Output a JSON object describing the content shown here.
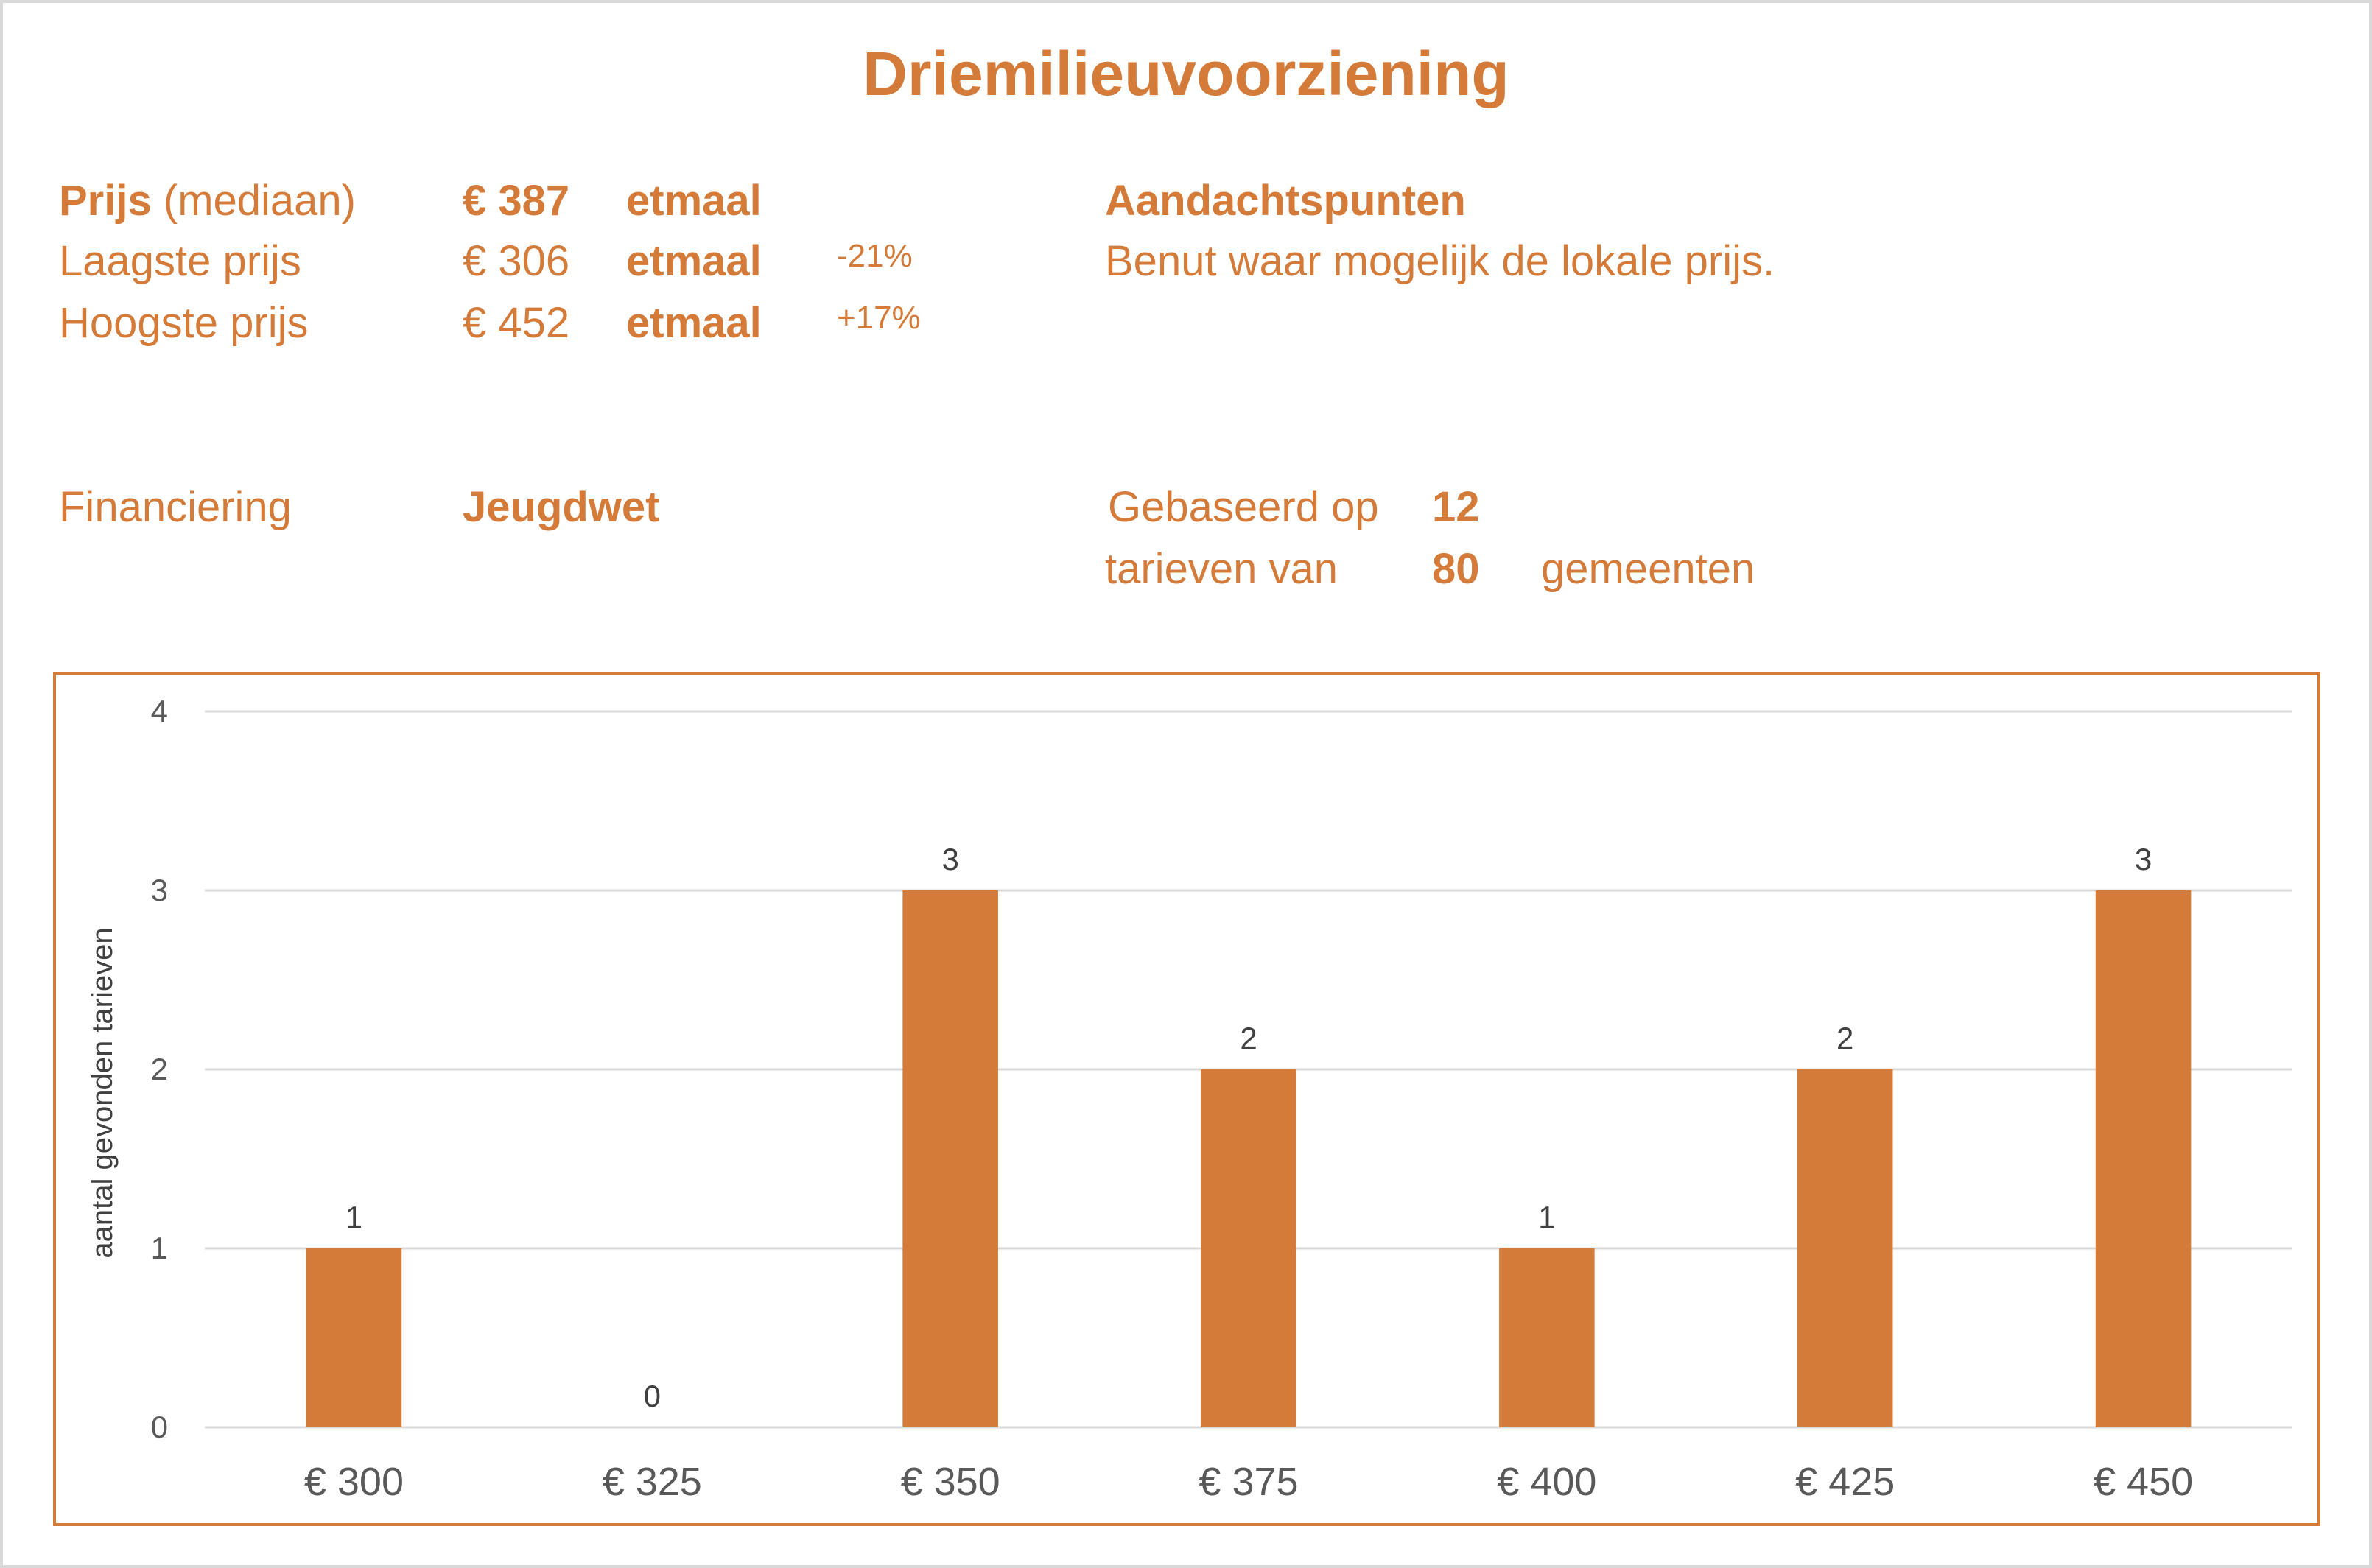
{
  "title": "Driemilieuvoorziening",
  "accent_color": "#D47B3A",
  "info": {
    "prijs_label": "Prijs",
    "prijs_sub": "(mediaan)",
    "prijs_value": "€ 387",
    "prijs_unit": "etmaal",
    "laagste_label": "Laagste prijs",
    "laagste_value": "€ 306",
    "laagste_unit": "etmaal",
    "laagste_pct": "-21%",
    "hoogste_label": "Hoogste prijs",
    "hoogste_value": "€ 452",
    "hoogste_unit": "etmaal",
    "hoogste_pct": "+17%",
    "aandacht_title": "Aandachtspunten",
    "aandacht_text": "Benut waar mogelijk de lokale prijs.",
    "financiering_label": "Financiering",
    "financiering_value": "Jeugdwet",
    "gebaseerd_label": "Gebaseerd op",
    "gebaseerd_count": "12",
    "tarieven_label": "tarieven van",
    "gemeenten_count": "80",
    "gemeenten_label": "gemeenten"
  },
  "chart_data": {
    "type": "bar",
    "title": "",
    "xlabel": "",
    "ylabel": "aantal gevonden tarieven",
    "categories": [
      "€ 300",
      "€ 325",
      "€ 350",
      "€ 375",
      "€ 400",
      "€ 425",
      "€ 450"
    ],
    "values": [
      1,
      0,
      3,
      2,
      1,
      2,
      3
    ],
    "ylim": [
      0,
      4
    ],
    "yticks": [
      "0",
      "1",
      "2",
      "3",
      "4"
    ],
    "grid": true,
    "bar_color": "#D47B3A"
  }
}
